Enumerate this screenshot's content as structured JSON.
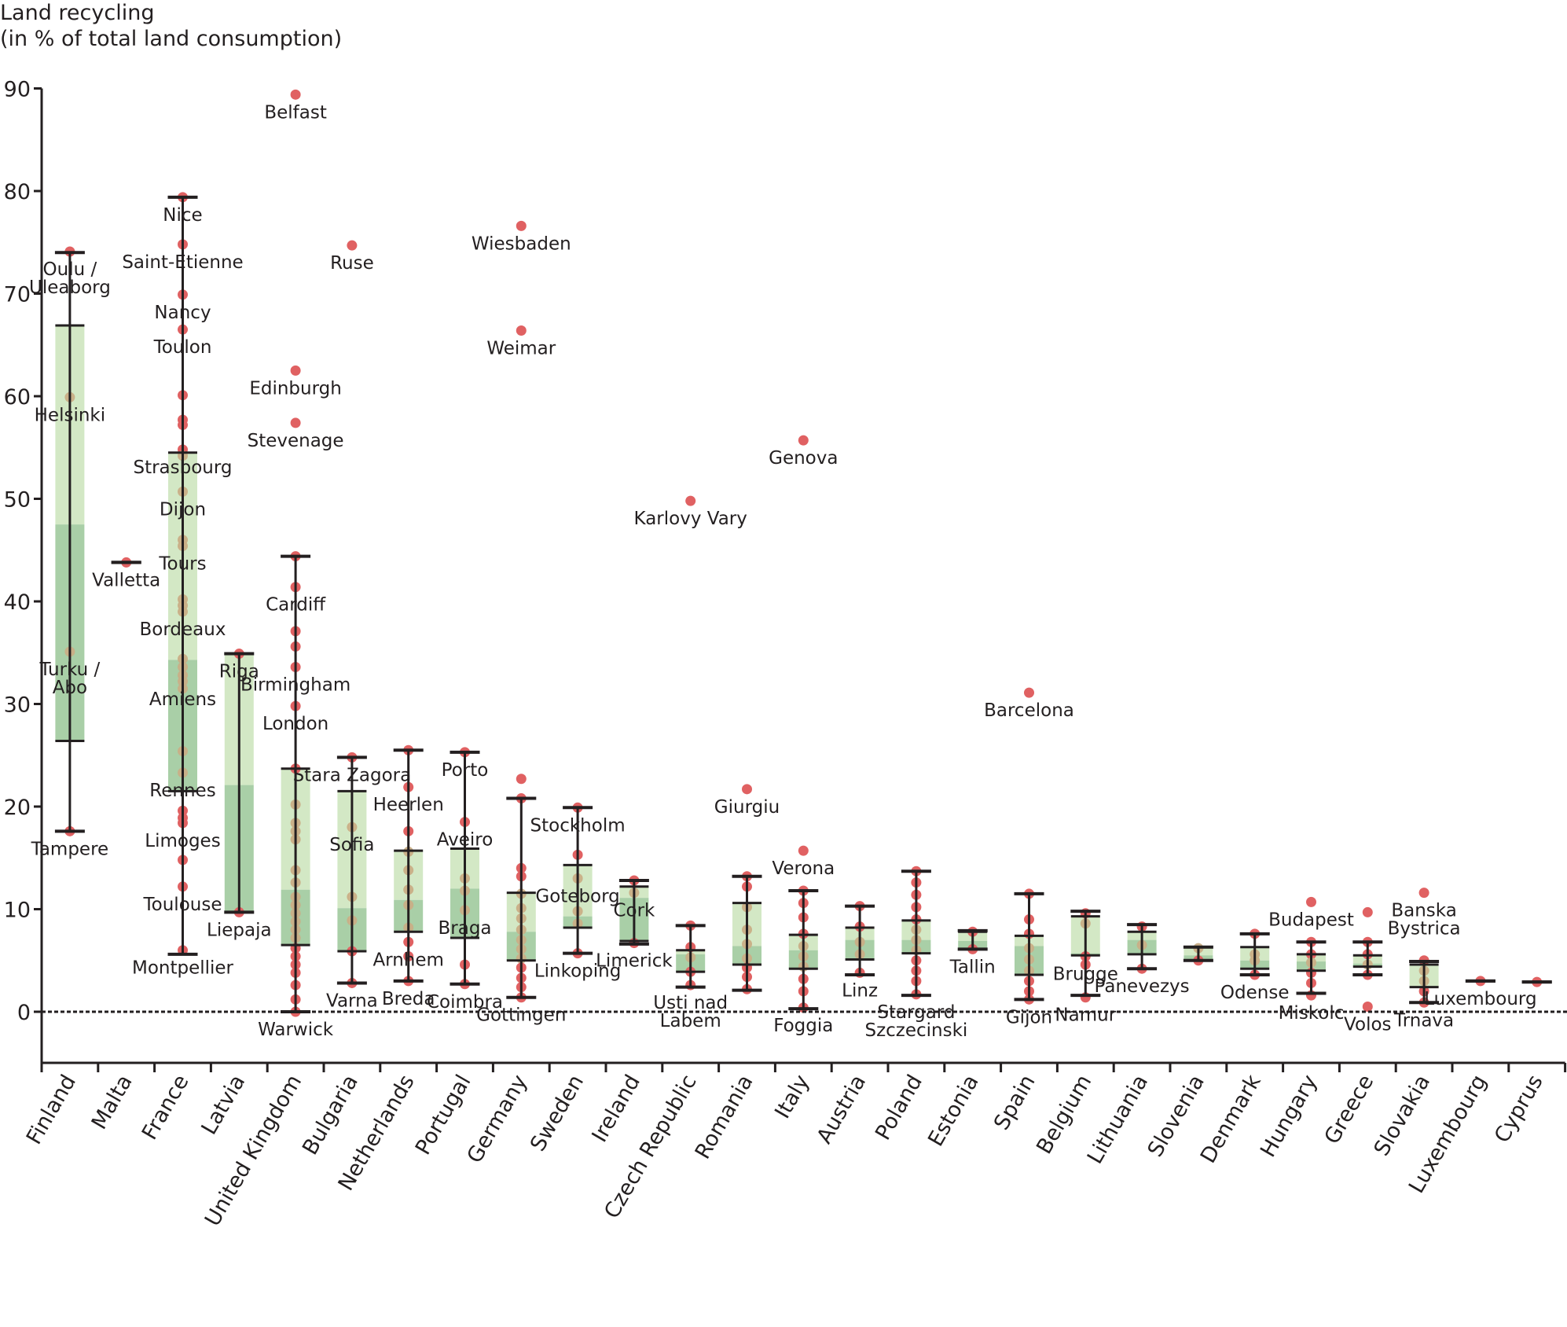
{
  "chart_data": {
    "type": "box",
    "title": "",
    "ylabel_line1": "Land recycling",
    "ylabel_line2": "(in % of total land consumption)",
    "xlabel": "",
    "ylim": [
      -5,
      90
    ],
    "yticks": [
      0,
      10,
      20,
      30,
      40,
      50,
      60,
      70,
      80,
      90
    ],
    "reference_line": {
      "y": 0,
      "style": "dotted"
    },
    "colors": {
      "upper_box": "#d3e8c5",
      "lower_box": "#a9cfa7",
      "point": "#e06162",
      "point_in_box": "#c9ae86",
      "whisker": "#231f20"
    },
    "categories": [
      "Finland",
      "Malta",
      "France",
      "Latvia",
      "United Kingdom",
      "Bulgaria",
      "Netherlands",
      "Portugal",
      "Germany",
      "Sweden",
      "Ireland",
      "Czech Republic",
      "Romania",
      "Italy",
      "Austria",
      "Poland",
      "Estonia",
      "Spain",
      "Belgium",
      "Lithuania",
      "Slovenia",
      "Denmark",
      "Hungary",
      "Greece",
      "Slovakia",
      "Luxembourg",
      "Cyprus"
    ],
    "series": [
      {
        "country": "Finland",
        "whisker_high": 74.0,
        "q3": 66.9,
        "median": 47.5,
        "q1": 26.4,
        "whisker_low": 17.6,
        "points": [
          {
            "v": 74.1,
            "label": "Oulu /\nUleaborg"
          },
          {
            "v": 59.9,
            "label": "Helsinki"
          },
          {
            "v": 35.1,
            "label": "Turku /\nAbo"
          },
          {
            "v": 17.6,
            "label": "Tampere"
          }
        ]
      },
      {
        "country": "Malta",
        "whisker_high": 43.8,
        "q3": 43.8,
        "median": 43.8,
        "q1": 43.8,
        "whisker_low": 43.8,
        "points": [
          {
            "v": 43.8,
            "label": "Valletta"
          }
        ]
      },
      {
        "country": "France",
        "whisker_high": 79.4,
        "q3": 54.5,
        "median": 34.3,
        "q1": 21.5,
        "whisker_low": 5.6,
        "points": [
          {
            "v": 79.4,
            "label": "Nice"
          },
          {
            "v": 74.8,
            "label": "Saint-Etienne"
          },
          {
            "v": 69.9,
            "label": "Nancy"
          },
          {
            "v": 66.5,
            "label": "Toulon"
          },
          {
            "v": 60.1
          },
          {
            "v": 57.7
          },
          {
            "v": 57.2
          },
          {
            "v": 54.8,
            "label": "Strasbourg"
          },
          {
            "v": 54.2
          },
          {
            "v": 50.7,
            "label": "Dijon"
          },
          {
            "v": 46.0
          },
          {
            "v": 45.4,
            "label": "Tours"
          },
          {
            "v": 40.2
          },
          {
            "v": 39.6
          },
          {
            "v": 39.0,
            "label": "Bordeaux"
          },
          {
            "v": 34.4
          },
          {
            "v": 33.6
          },
          {
            "v": 32.8
          },
          {
            "v": 32.2,
            "label": "Amiens"
          },
          {
            "v": 31.5
          },
          {
            "v": 25.4
          },
          {
            "v": 23.3,
            "label": "Rennes"
          },
          {
            "v": 19.6
          },
          {
            "v": 18.9
          },
          {
            "v": 18.4,
            "label": "Limoges"
          },
          {
            "v": 14.8
          },
          {
            "v": 12.2,
            "label": "Toulouse"
          },
          {
            "v": 6.0,
            "label": "Montpellier"
          }
        ]
      },
      {
        "country": "Latvia",
        "whisker_high": 34.9,
        "q3": 34.9,
        "median": 22.1,
        "q1": 9.7,
        "whisker_low": 9.7,
        "points": [
          {
            "v": 34.9,
            "label": "Riga"
          },
          {
            "v": 9.7,
            "label": "Liepaja"
          }
        ]
      },
      {
        "country": "United Kingdom",
        "whisker_high": 44.4,
        "q3": 23.7,
        "median": 11.9,
        "q1": 6.5,
        "whisker_low": 0.0,
        "points": [
          {
            "v": 89.4,
            "label": "Belfast"
          },
          {
            "v": 62.5,
            "label": "Edinburgh"
          },
          {
            "v": 57.4,
            "label": "Stevenage"
          },
          {
            "v": 44.4
          },
          {
            "v": 41.4,
            "label": "Cardiff"
          },
          {
            "v": 37.1
          },
          {
            "v": 35.6
          },
          {
            "v": 33.6,
            "label": "Birmingham"
          },
          {
            "v": 29.8,
            "label": "London"
          },
          {
            "v": 23.7
          },
          {
            "v": 20.2
          },
          {
            "v": 18.4
          },
          {
            "v": 17.6
          },
          {
            "v": 16.8
          },
          {
            "v": 13.8
          },
          {
            "v": 12.6
          },
          {
            "v": 11.2
          },
          {
            "v": 10.4
          },
          {
            "v": 9.6
          },
          {
            "v": 8.8
          },
          {
            "v": 8.0
          },
          {
            "v": 7.2
          },
          {
            "v": 6.2
          },
          {
            "v": 5.4
          },
          {
            "v": 4.6
          },
          {
            "v": 3.8
          },
          {
            "v": 2.6
          },
          {
            "v": 1.2
          },
          {
            "v": 0.0,
            "label": "Warwick"
          }
        ]
      },
      {
        "country": "Bulgaria",
        "whisker_high": 24.8,
        "q3": 21.5,
        "median": 10.1,
        "q1": 5.9,
        "whisker_low": 2.8,
        "points": [
          {
            "v": 74.7,
            "label": "Ruse"
          },
          {
            "v": 24.8,
            "label": "Stara Zagora"
          },
          {
            "v": 18.0,
            "label": "Sofia"
          },
          {
            "v": 11.2
          },
          {
            "v": 8.9
          },
          {
            "v": 5.9
          },
          {
            "v": 2.8,
            "label": "Varna"
          }
        ]
      },
      {
        "country": "Netherlands",
        "whisker_high": 25.5,
        "q3": 15.7,
        "median": 10.9,
        "q1": 7.8,
        "whisker_low": 3.0,
        "points": [
          {
            "v": 25.5
          },
          {
            "v": 21.9,
            "label": "Heerlen"
          },
          {
            "v": 17.6
          },
          {
            "v": 15.6
          },
          {
            "v": 13.8
          },
          {
            "v": 11.9
          },
          {
            "v": 10.4
          },
          {
            "v": 8.2
          },
          {
            "v": 6.8,
            "label": "Arnhem"
          },
          {
            "v": 5.4
          },
          {
            "v": 3.0,
            "label": "Breda"
          }
        ]
      },
      {
        "country": "Portugal",
        "whisker_high": 25.3,
        "q3": 15.9,
        "median": 12.0,
        "q1": 7.2,
        "whisker_low": 2.7,
        "points": [
          {
            "v": 25.3,
            "label": "Porto"
          },
          {
            "v": 18.5,
            "label": "Aveiro"
          },
          {
            "v": 13.0
          },
          {
            "v": 11.8
          },
          {
            "v": 9.9,
            "label": "Braga"
          },
          {
            "v": 4.6
          },
          {
            "v": 2.7,
            "label": "Coimbra"
          }
        ]
      },
      {
        "country": "Germany",
        "whisker_high": 20.8,
        "q3": 11.6,
        "median": 7.8,
        "q1": 5.0,
        "whisker_low": 1.4,
        "points": [
          {
            "v": 76.6,
            "label": "Wiesbaden"
          },
          {
            "v": 66.4,
            "label": "Weimar"
          },
          {
            "v": 22.7
          },
          {
            "v": 20.8
          },
          {
            "v": 14.0
          },
          {
            "v": 13.2
          },
          {
            "v": 11.5
          },
          {
            "v": 10.1
          },
          {
            "v": 9.1
          },
          {
            "v": 8.0
          },
          {
            "v": 7.0
          },
          {
            "v": 6.1
          },
          {
            "v": 5.2
          },
          {
            "v": 4.3
          },
          {
            "v": 3.3
          },
          {
            "v": 2.4
          },
          {
            "v": 1.4,
            "label": "Gottingen"
          }
        ]
      },
      {
        "country": "Sweden",
        "whisker_high": 19.9,
        "q3": 14.3,
        "median": 9.3,
        "q1": 8.2,
        "whisker_low": 5.7,
        "points": [
          {
            "v": 19.9,
            "label": "Stockholm"
          },
          {
            "v": 15.3
          },
          {
            "v": 13.0,
            "label": "Goteborg"
          },
          {
            "v": 9.8
          },
          {
            "v": 8.6
          },
          {
            "v": 5.7,
            "label": "Linkoping"
          }
        ]
      },
      {
        "country": "Ireland",
        "whisker_high": 12.8,
        "q3": 12.2,
        "median": 11.1,
        "q1": 6.9,
        "whisker_low": 6.6,
        "points": [
          {
            "v": 12.8
          },
          {
            "v": 11.6,
            "label": "Cork"
          },
          {
            "v": 6.7,
            "label": "Limerick"
          }
        ]
      },
      {
        "country": "Czech Republic",
        "whisker_high": 8.4,
        "q3": 6.0,
        "median": 5.6,
        "q1": 3.9,
        "whisker_low": 2.4,
        "points": [
          {
            "v": 49.8,
            "label": "Karlovy Vary"
          },
          {
            "v": 8.4
          },
          {
            "v": 6.3
          },
          {
            "v": 5.3
          },
          {
            "v": 3.9
          },
          {
            "v": 2.6,
            "label": "Usti nad\nLabem"
          }
        ]
      },
      {
        "country": "Romania",
        "whisker_high": 13.2,
        "q3": 10.6,
        "median": 6.4,
        "q1": 4.6,
        "whisker_low": 2.1,
        "points": [
          {
            "v": 21.7,
            "label": "Giurgiu"
          },
          {
            "v": 13.2
          },
          {
            "v": 12.2
          },
          {
            "v": 10.2
          },
          {
            "v": 8.0
          },
          {
            "v": 6.6
          },
          {
            "v": 5.2
          },
          {
            "v": 4.3
          },
          {
            "v": 3.4
          },
          {
            "v": 2.2
          }
        ]
      },
      {
        "country": "Italy",
        "whisker_high": 11.8,
        "q3": 7.5,
        "median": 6.0,
        "q1": 4.2,
        "whisker_low": 0.3,
        "points": [
          {
            "v": 55.7,
            "label": "Genova"
          },
          {
            "v": 15.7,
            "label": "Verona"
          },
          {
            "v": 11.8
          },
          {
            "v": 10.6
          },
          {
            "v": 9.2
          },
          {
            "v": 7.6
          },
          {
            "v": 6.4
          },
          {
            "v": 5.4
          },
          {
            "v": 4.4
          },
          {
            "v": 3.2
          },
          {
            "v": 2.0
          },
          {
            "v": 0.4,
            "label": "Foggia"
          }
        ]
      },
      {
        "country": "Austria",
        "whisker_high": 10.3,
        "q3": 8.2,
        "median": 7.0,
        "q1": 5.1,
        "whisker_low": 3.6,
        "points": [
          {
            "v": 10.3
          },
          {
            "v": 8.3
          },
          {
            "v": 6.8
          },
          {
            "v": 5.6
          },
          {
            "v": 3.8,
            "label": "Linz"
          }
        ]
      },
      {
        "country": "Poland",
        "whisker_high": 13.7,
        "q3": 8.9,
        "median": 7.0,
        "q1": 5.7,
        "whisker_low": 1.6,
        "points": [
          {
            "v": 13.7
          },
          {
            "v": 12.6
          },
          {
            "v": 11.4
          },
          {
            "v": 10.2
          },
          {
            "v": 9.0
          },
          {
            "v": 8.0
          },
          {
            "v": 7.0
          },
          {
            "v": 6.0
          },
          {
            "v": 5.0
          },
          {
            "v": 4.0
          },
          {
            "v": 3.0
          },
          {
            "v": 1.7,
            "label": "Stargard\nSzczecinski"
          }
        ]
      },
      {
        "country": "Estonia",
        "whisker_high": 7.9,
        "q3": 7.8,
        "median": 6.9,
        "q1": 6.1,
        "whisker_low": 6.1,
        "points": [
          {
            "v": 7.8
          },
          {
            "v": 6.1,
            "label": "Tallin"
          }
        ]
      },
      {
        "country": "Spain",
        "whisker_high": 11.5,
        "q3": 7.4,
        "median": 6.4,
        "q1": 3.6,
        "whisker_low": 1.2,
        "points": [
          {
            "v": 31.1,
            "label": "Barcelona"
          },
          {
            "v": 11.5
          },
          {
            "v": 9.0
          },
          {
            "v": 7.6
          },
          {
            "v": 6.2
          },
          {
            "v": 5.1
          },
          {
            "v": 4.0
          },
          {
            "v": 3.0
          },
          {
            "v": 2.0
          },
          {
            "v": 1.2,
            "label": "Gijon"
          }
        ]
      },
      {
        "country": "Belgium",
        "whisker_high": 9.8,
        "q3": 9.3,
        "median": 5.7,
        "q1": 5.5,
        "whisker_low": 1.6,
        "points": [
          {
            "v": 9.6
          },
          {
            "v": 8.6
          },
          {
            "v": 5.4,
            "label": "Brugge"
          },
          {
            "v": 4.6
          },
          {
            "v": 1.4,
            "label": "Namur"
          }
        ]
      },
      {
        "country": "Lithuania",
        "whisker_high": 8.5,
        "q3": 7.8,
        "median": 7.0,
        "q1": 5.6,
        "whisker_low": 4.2,
        "points": [
          {
            "v": 8.3
          },
          {
            "v": 6.5
          },
          {
            "v": 4.2,
            "label": "Panevezys"
          }
        ]
      },
      {
        "country": "Slovenia",
        "whisker_high": 6.3,
        "q3": 6.3,
        "median": 5.5,
        "q1": 5.0,
        "whisker_low": 5.0,
        "points": [
          {
            "v": 6.2
          },
          {
            "v": 5.0
          }
        ]
      },
      {
        "country": "Denmark",
        "whisker_high": 7.6,
        "q3": 6.3,
        "median": 5.0,
        "q1": 4.2,
        "whisker_low": 3.6,
        "points": [
          {
            "v": 7.6
          },
          {
            "v": 5.6
          },
          {
            "v": 5.0
          },
          {
            "v": 3.6,
            "label": "Odense"
          }
        ]
      },
      {
        "country": "Hungary",
        "whisker_high": 6.8,
        "q3": 5.6,
        "median": 4.9,
        "q1": 4.0,
        "whisker_low": 1.8,
        "points": [
          {
            "v": 10.7,
            "label": "Budapest"
          },
          {
            "v": 6.8
          },
          {
            "v": 5.6
          },
          {
            "v": 4.8
          },
          {
            "v": 3.8
          },
          {
            "v": 2.8
          },
          {
            "v": 1.6,
            "label": "Miskolc"
          }
        ]
      },
      {
        "country": "Greece",
        "whisker_high": 6.8,
        "q3": 5.5,
        "median": 4.7,
        "q1": 4.4,
        "whisker_low": 3.6,
        "points": [
          {
            "v": 9.7
          },
          {
            "v": 6.8
          },
          {
            "v": 5.6
          },
          {
            "v": 4.6
          },
          {
            "v": 3.6
          },
          {
            "v": 0.5,
            "label": "Volos"
          }
        ]
      },
      {
        "country": "Slovakia",
        "whisker_high": 4.9,
        "q3": 4.6,
        "median": 2.5,
        "q1": 2.4,
        "whisker_low": 0.9,
        "points": [
          {
            "v": 11.6,
            "label": "Banska\nBystrica"
          },
          {
            "v": 5.0
          },
          {
            "v": 4.0
          },
          {
            "v": 3.0
          },
          {
            "v": 2.0
          },
          {
            "v": 0.9,
            "label": "Trnava"
          }
        ]
      },
      {
        "country": "Luxembourg",
        "whisker_high": 3.0,
        "q3": 3.0,
        "median": 3.0,
        "q1": 3.0,
        "whisker_low": 3.0,
        "points": [
          {
            "v": 3.0,
            "label": "Luxembourg"
          }
        ]
      },
      {
        "country": "Cyprus",
        "whisker_high": 2.9,
        "q3": 2.9,
        "median": 2.9,
        "q1": 2.9,
        "whisker_low": 2.9,
        "points": [
          {
            "v": 2.9
          }
        ]
      }
    ]
  }
}
